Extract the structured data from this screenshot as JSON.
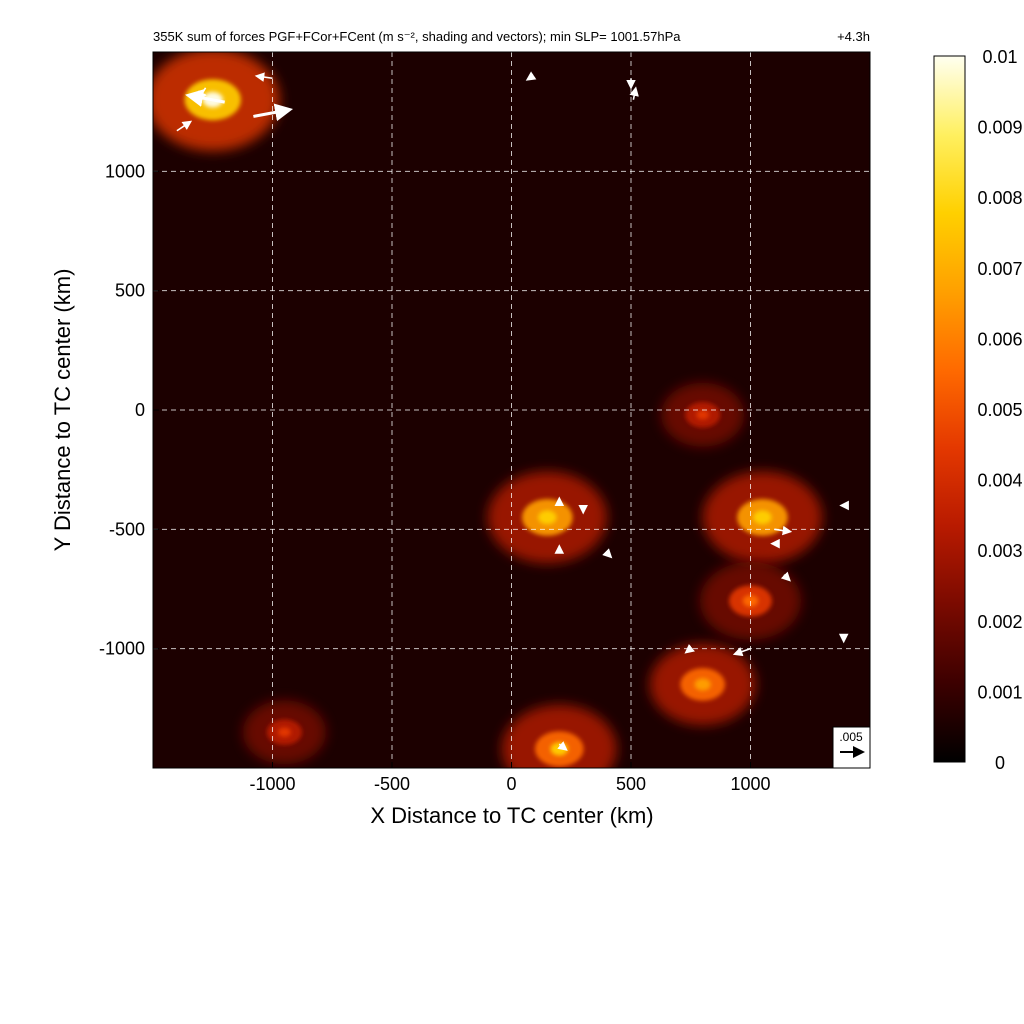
{
  "chart_data": {
    "type": "heatmap",
    "title": "355K sum of forces PGF+FCor+FCent (m s⁻², shading and vectors); min SLP= 1001.57hPa",
    "time_label": "+4.3h",
    "xlabel": "X Distance to TC center (km)",
    "ylabel": "Y Distance to TC center (km)",
    "xlim": [
      -1500,
      1500
    ],
    "ylim": [
      -1500,
      1500
    ],
    "xticks": [
      -1000,
      -500,
      0,
      500,
      1000
    ],
    "yticks": [
      1000,
      500,
      0,
      -500,
      -1000
    ],
    "grid": true,
    "colorbar": {
      "min": 0,
      "max": 0.01,
      "ticks": [
        "0",
        "0.001",
        "0.002",
        "0.003",
        "0.004",
        "0.005",
        "0.006",
        "0.007",
        "0.008",
        "0.009",
        "0.01"
      ],
      "colormap": [
        "#000000",
        "#3c0000",
        "#7a0a00",
        "#b81a00",
        "#e43800",
        "#ff6a00",
        "#ffa000",
        "#ffd000",
        "#fff060",
        "#fffff0"
      ]
    },
    "vector_reference": {
      "label": ".005",
      "magnitude": 0.005
    },
    "hotspots": [
      {
        "x": -1250,
        "y": 1300,
        "magnitude": 0.0095
      },
      {
        "x": 150,
        "y": -450,
        "magnitude": 0.008
      },
      {
        "x": 1050,
        "y": -450,
        "magnitude": 0.008
      },
      {
        "x": 1000,
        "y": -800,
        "magnitude": 0.006
      },
      {
        "x": 800,
        "y": -1150,
        "magnitude": 0.0065
      },
      {
        "x": 200,
        "y": -1420,
        "magnitude": 0.0075
      },
      {
        "x": -950,
        "y": -1350,
        "magnitude": 0.004
      },
      {
        "x": 800,
        "y": -20,
        "magnitude": 0.004
      }
    ],
    "vectors": [
      {
        "x": -1400,
        "y": 1170,
        "u": 0.003,
        "v": 0.002
      },
      {
        "x": -1200,
        "y": 1290,
        "u": -0.008,
        "v": 0.0015
      },
      {
        "x": -1080,
        "y": 1230,
        "u": 0.008,
        "v": 0.0015
      },
      {
        "x": -1000,
        "y": 1390,
        "u": -0.0035,
        "v": 0.0005
      },
      {
        "x": -1280,
        "y": 1350,
        "u": -0.0015,
        "v": -0.0025
      },
      {
        "x": 510,
        "y": 1300,
        "u": 0.0005,
        "v": 0.0025
      },
      {
        "x": 1100,
        "y": -500,
        "u": 0.0035,
        "v": -0.0005
      },
      {
        "x": 1000,
        "y": -1000,
        "u": -0.0035,
        "v": -0.0012
      },
      {
        "x": 1120,
        "y": -560,
        "u": -0.0015,
        "v": 0.0
      },
      {
        "x": 1140,
        "y": -690,
        "u": 0.0012,
        "v": -0.0012
      },
      {
        "x": 1390,
        "y": -940,
        "u": 0.0,
        "v": -0.0015
      },
      {
        "x": 500,
        "y": 1390,
        "u": 0.0,
        "v": -0.002
      },
      {
        "x": 90,
        "y": 1400,
        "u": -0.0012,
        "v": -0.0008
      },
      {
        "x": 200,
        "y": -400,
        "u": 0.0,
        "v": 0.0015
      },
      {
        "x": 300,
        "y": -400,
        "u": 0.0,
        "v": -0.0015
      },
      {
        "x": 200,
        "y": -600,
        "u": 0.0,
        "v": 0.0015
      },
      {
        "x": 400,
        "y": -600,
        "u": 0.0008,
        "v": -0.0008
      },
      {
        "x": 200,
        "y": -1400,
        "u": 0.0015,
        "v": -0.0012
      },
      {
        "x": 1400,
        "y": -400,
        "u": -0.001,
        "v": 0.0
      },
      {
        "x": 750,
        "y": -1000,
        "u": -0.001,
        "v": -0.0008
      }
    ]
  }
}
